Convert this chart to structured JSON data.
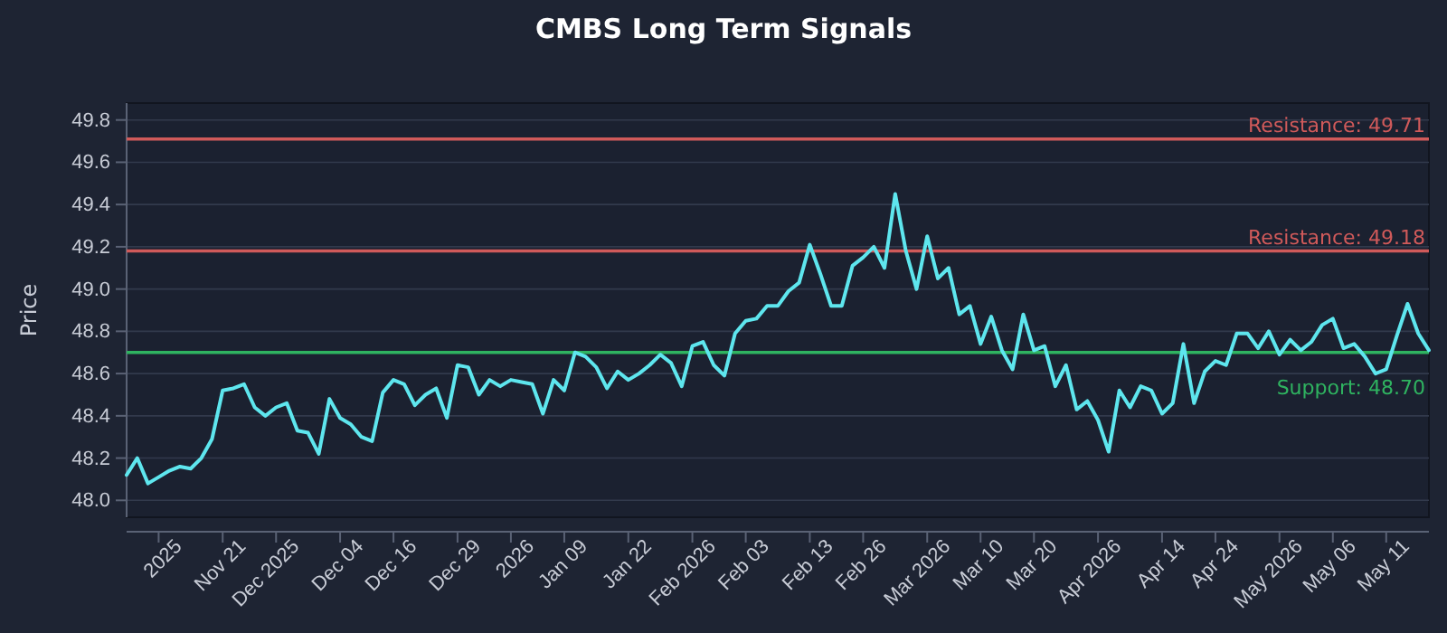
{
  "chart_data": {
    "type": "line",
    "title": "CMBS Long Term Signals",
    "ylabel": "Price",
    "categories": [
      null,
      null,
      null,
      "2025",
      null,
      null,
      null,
      null,
      null,
      "Nov 21",
      null,
      null,
      null,
      null,
      "Dec 2025",
      null,
      null,
      null,
      null,
      null,
      "Dec 04",
      null,
      null,
      null,
      null,
      "Dec 16",
      null,
      null,
      null,
      null,
      null,
      "Dec 29",
      null,
      null,
      null,
      null,
      "2026",
      null,
      null,
      null,
      null,
      "Jan 09",
      null,
      null,
      null,
      null,
      null,
      "Jan 22",
      null,
      null,
      null,
      null,
      null,
      "Feb 2026",
      null,
      null,
      null,
      null,
      "Feb 03",
      null,
      null,
      null,
      null,
      null,
      "Feb 13",
      null,
      null,
      null,
      null,
      "Feb 26",
      null,
      null,
      null,
      null,
      null,
      "Mar 2026",
      null,
      null,
      null,
      null,
      "Mar 10",
      null,
      null,
      null,
      null,
      "Mar 20",
      null,
      null,
      null,
      null,
      null,
      "Apr 2026",
      null,
      null,
      null,
      null,
      null,
      "Apr 14",
      null,
      null,
      null,
      null,
      "Apr 24",
      null,
      null,
      null,
      null,
      null,
      "May 2026",
      null,
      null,
      null,
      null,
      "May 06",
      null,
      null,
      null,
      null,
      "May 11",
      null,
      null,
      null,
      null
    ],
    "series": [
      {
        "color": "#5ee6ee",
        "values": [
          48.12,
          48.2,
          48.08,
          48.11,
          48.14,
          48.16,
          48.15,
          48.2,
          48.29,
          48.52,
          48.53,
          48.55,
          48.44,
          48.4,
          48.44,
          48.46,
          48.33,
          48.32,
          48.22,
          48.48,
          48.39,
          48.36,
          48.3,
          48.28,
          48.51,
          48.57,
          48.55,
          48.45,
          48.5,
          48.53,
          48.39,
          48.64,
          48.63,
          48.5,
          48.57,
          48.54,
          48.57,
          48.56,
          48.55,
          48.41,
          48.57,
          48.52,
          48.7,
          48.68,
          48.63,
          48.53,
          48.61,
          48.57,
          48.6,
          48.64,
          48.69,
          48.65,
          48.54,
          48.73,
          48.75,
          48.64,
          48.59,
          48.79,
          48.85,
          48.86,
          48.92,
          48.92,
          48.99,
          49.03,
          49.21,
          49.07,
          48.92,
          48.92,
          49.11,
          49.15,
          49.2,
          49.1,
          49.45,
          49.18,
          49.0,
          49.25,
          49.05,
          49.1,
          48.88,
          48.92,
          48.74,
          48.87,
          48.71,
          48.62,
          48.88,
          48.71,
          48.73,
          48.54,
          48.64,
          48.43,
          48.47,
          48.38,
          48.23,
          48.52,
          48.44,
          48.54,
          48.52,
          48.41,
          48.46,
          48.74,
          48.46,
          48.61,
          48.66,
          48.64,
          48.79,
          48.79,
          48.72,
          48.8,
          48.69,
          48.76,
          48.71,
          48.75,
          48.83,
          48.86,
          48.72,
          48.74,
          48.68,
          48.6,
          48.62,
          48.78,
          48.93,
          48.79,
          48.71
        ]
      }
    ],
    "ylim": [
      47.92,
      49.88
    ],
    "yticks": [
      {
        "value": 48.0,
        "label": "48.0"
      },
      {
        "value": 48.2,
        "label": "48.2"
      },
      {
        "value": 48.4,
        "label": "48.4"
      },
      {
        "value": 48.6,
        "label": "48.6"
      },
      {
        "value": 48.8,
        "label": "48.8"
      },
      {
        "value": 49.0,
        "label": "49.0"
      },
      {
        "value": 49.2,
        "label": "49.2"
      },
      {
        "value": 49.4,
        "label": "49.4"
      },
      {
        "value": 49.6,
        "label": "49.6"
      },
      {
        "value": 49.8,
        "label": "49.8"
      }
    ],
    "grid": "y",
    "ref_lines": [
      {
        "axis": "y",
        "value": 49.71,
        "label": "Resistance: 49.71",
        "color": "#d05a5a"
      },
      {
        "axis": "y",
        "value": 49.18,
        "label": "Resistance: 49.18",
        "color": "#d05a5a"
      },
      {
        "axis": "y",
        "value": 48.7,
        "label": "Support: 48.70",
        "color": "#2fb360"
      }
    ]
  }
}
